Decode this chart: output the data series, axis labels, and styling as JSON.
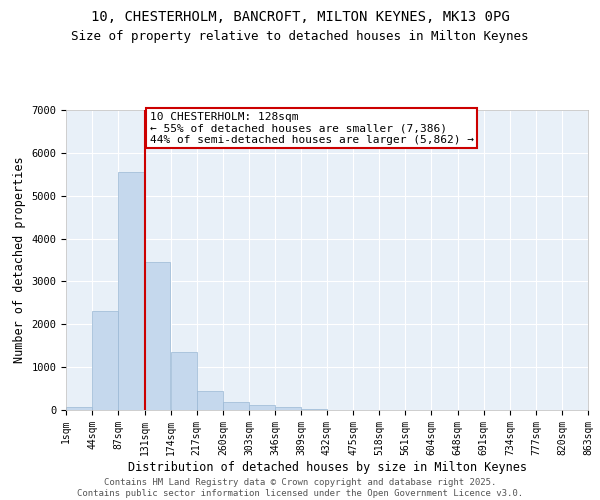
{
  "title_line1": "10, CHESTERHOLM, BANCROFT, MILTON KEYNES, MK13 0PG",
  "title_line2": "Size of property relative to detached houses in Milton Keynes",
  "xlabel": "Distribution of detached houses by size in Milton Keynes",
  "ylabel": "Number of detached properties",
  "bar_color": "#c5d8ed",
  "bar_edge_color": "#9ab8d4",
  "background_color": "#e8f0f8",
  "grid_color": "white",
  "bins_left": [
    1,
    44,
    87,
    131,
    174,
    217,
    260,
    303,
    346,
    389,
    432,
    475,
    518,
    561,
    604,
    648,
    691,
    734,
    777,
    820
  ],
  "bin_width": 43,
  "values": [
    80,
    2300,
    5550,
    3450,
    1350,
    450,
    180,
    110,
    80,
    30,
    10,
    5,
    3,
    2,
    1,
    1,
    0,
    0,
    0,
    0
  ],
  "tick_labels": [
    "1sqm",
    "44sqm",
    "87sqm",
    "131sqm",
    "174sqm",
    "217sqm",
    "260sqm",
    "303sqm",
    "346sqm",
    "389sqm",
    "432sqm",
    "475sqm",
    "518sqm",
    "561sqm",
    "604sqm",
    "648sqm",
    "691sqm",
    "734sqm",
    "777sqm",
    "820sqm",
    "863sqm"
  ],
  "tick_positions": [
    1,
    44,
    87,
    131,
    174,
    217,
    260,
    303,
    346,
    389,
    432,
    475,
    518,
    561,
    604,
    648,
    691,
    734,
    777,
    820,
    863
  ],
  "vline_x": 131,
  "vline_color": "#cc0000",
  "annotation_text": "10 CHESTERHOLM: 128sqm\n← 55% of detached houses are smaller (7,386)\n44% of semi-detached houses are larger (5,862) →",
  "ylim": [
    0,
    7000
  ],
  "xlim": [
    1,
    863
  ],
  "footer_text": "Contains HM Land Registry data © Crown copyright and database right 2025.\nContains public sector information licensed under the Open Government Licence v3.0.",
  "title_fontsize": 10,
  "subtitle_fontsize": 9,
  "axis_label_fontsize": 8.5,
  "tick_fontsize": 7,
  "annotation_fontsize": 8,
  "footer_fontsize": 6.5,
  "yticks": [
    0,
    1000,
    2000,
    3000,
    4000,
    5000,
    6000,
    7000
  ]
}
